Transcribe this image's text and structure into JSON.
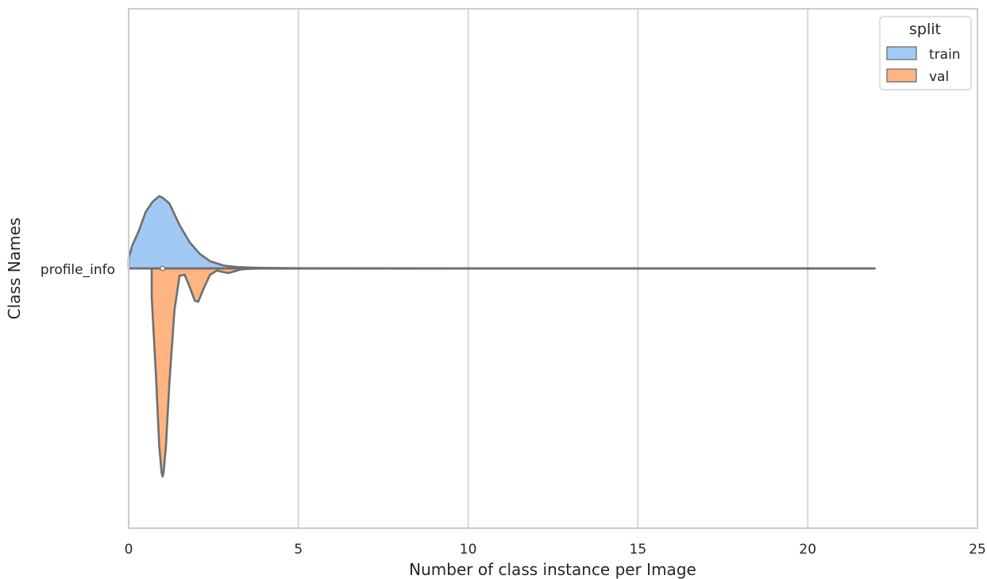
{
  "chart_data": {
    "type": "violin",
    "title": "",
    "xlabel": "Number of class instance per Image",
    "ylabel": "Class Names",
    "xlim": [
      0,
      25
    ],
    "xticks": [
      0,
      5,
      10,
      15,
      20,
      25
    ],
    "categories": [
      "profile_info"
    ],
    "grid": "vertical",
    "legend": {
      "title": "split",
      "placement": "top-right",
      "entries": [
        {
          "label": "train",
          "color": "#a1c9f4"
        },
        {
          "label": "val",
          "color": "#ffb482"
        }
      ]
    },
    "median": 1,
    "range": [
      0,
      22
    ],
    "series": [
      {
        "name": "train",
        "side": "upper",
        "color": "#a1c9f4",
        "density_x": [
          0,
          0.1,
          0.3,
          0.5,
          0.7,
          0.9,
          1.0,
          1.2,
          1.5,
          1.8,
          2.1,
          2.4,
          2.8,
          3.2,
          3.6,
          4.0,
          5.0,
          10,
          15,
          20,
          21.95
        ],
        "density": [
          0.14,
          0.31,
          0.52,
          0.78,
          0.92,
          1.0,
          0.98,
          0.9,
          0.6,
          0.36,
          0.2,
          0.1,
          0.04,
          0.02,
          0.012,
          0.008,
          0.003,
          0.001,
          0.001,
          0.001,
          0.0
        ]
      },
      {
        "name": "val",
        "side": "lower",
        "color": "#ffb482",
        "density_x": [
          0.68,
          0.68,
          0.8,
          0.9,
          0.97,
          1.0,
          1.03,
          1.1,
          1.2,
          1.35,
          1.5,
          1.65,
          1.8,
          1.95,
          2.05,
          2.2,
          2.4,
          2.6,
          2.8,
          2.95,
          3.1,
          3.3,
          3.5,
          3.8,
          4.5,
          5.0,
          10,
          15,
          20,
          21.95
        ],
        "density": [
          0,
          0.14,
          0.5,
          0.85,
          0.98,
          1.0,
          0.98,
          0.85,
          0.55,
          0.2,
          0.035,
          0.03,
          0.09,
          0.155,
          0.16,
          0.1,
          0.03,
          0.01,
          0.018,
          0.022,
          0.015,
          0.005,
          0.002,
          0.001,
          0.0005,
          0.0003,
          0.0002,
          0.0002,
          0.0001,
          0.0
        ]
      }
    ]
  }
}
